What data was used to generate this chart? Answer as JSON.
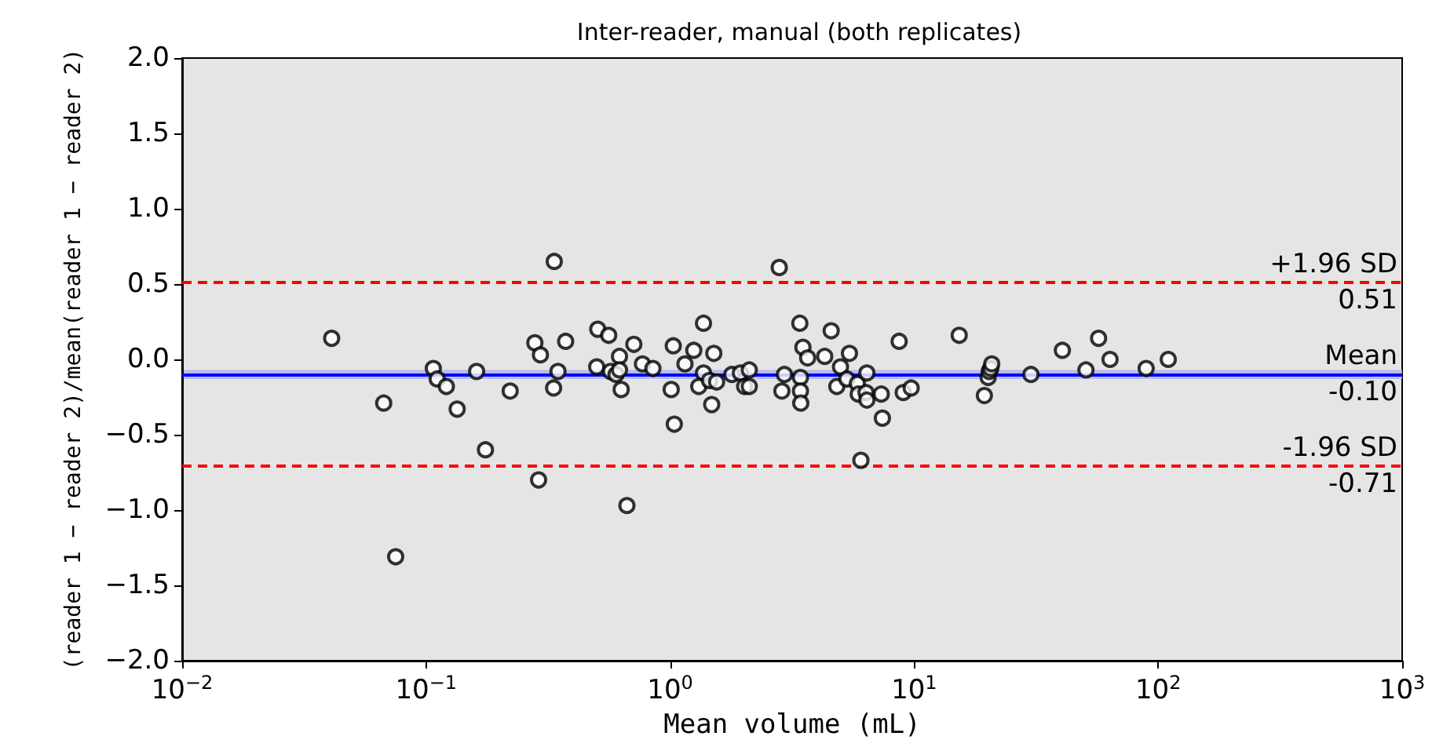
{
  "chart_data": {
    "type": "scatter",
    "title": "Inter-reader, manual (both replicates)",
    "xlabel": "Mean volume (mL)",
    "ylabel": "(reader 1 − reader 2)/mean(reader 1 − reader 2)",
    "log": "x",
    "grid": false,
    "marker": "circle",
    "xlim": [
      0.01,
      1000
    ],
    "xticks": [
      {
        "value": 0.01,
        "label": "10$^{−2}$"
      },
      {
        "value": 0.1,
        "label": "10$^{−1}$"
      },
      {
        "value": 1,
        "label": "10$^{0}$"
      },
      {
        "value": 10,
        "label": "10$^{1}$"
      },
      {
        "value": 100,
        "label": "10$^{2}$"
      },
      {
        "value": 1000,
        "label": "10$^{3}$"
      }
    ],
    "ylim": [
      -2,
      2
    ],
    "yticks": [
      {
        "value": -2,
        "label": "−2.0"
      },
      {
        "value": -1.5,
        "label": "−1.5"
      },
      {
        "value": -1,
        "label": "−1.0"
      },
      {
        "value": -0.5,
        "label": "−0.5"
      },
      {
        "value": 0,
        "label": "0.0"
      },
      {
        "value": 0.5,
        "label": "0.5"
      },
      {
        "value": 1,
        "label": "1.0"
      },
      {
        "value": 1.5,
        "label": "1.5"
      },
      {
        "value": 2,
        "label": "2.0"
      }
    ],
    "series": [
      {
        "color": "#000000",
        "x": [
          0.041,
          0.067,
          0.075,
          0.107,
          0.111,
          0.121,
          0.134,
          0.161,
          0.175,
          0.221,
          0.279,
          0.294,
          0.289,
          0.335,
          0.373,
          0.347,
          0.333,
          0.505,
          0.56,
          0.5,
          0.62,
          0.57,
          0.6,
          0.62,
          0.63,
          0.665,
          0.71,
          0.77,
          0.85,
          1.01,
          1.03,
          1.04,
          1.15,
          1.25,
          1.37,
          1.37,
          1.31,
          1.45,
          1.48,
          1.51,
          1.55,
          1.79,
          1.94,
          2.11,
          2.02,
          2.11,
          2.8,
          2.94,
          2.87,
          3.4,
          3.5,
          3.66,
          3.42,
          3.42,
          3.43,
          4.3,
          4.57,
          4.99,
          5.43,
          4.82,
          5.3,
          5.85,
          6.4,
          5.9,
          6.35,
          6.4,
          6.05,
          7.33,
          7.41,
          8.68,
          9.02,
          9.72,
          15.3,
          19.4,
          20.1,
          20.3,
          20.6,
          20.8,
          30.1,
          40.5,
          50.6,
          57,
          63.5,
          89.3,
          110
        ],
        "values": [
          0.14,
          -0.29,
          -1.31,
          -0.06,
          -0.13,
          -0.18,
          -0.33,
          -0.08,
          -0.6,
          -0.21,
          0.11,
          0.03,
          -0.8,
          0.65,
          0.12,
          -0.08,
          -0.19,
          0.2,
          0.16,
          -0.05,
          0.02,
          -0.08,
          -0.1,
          -0.07,
          -0.2,
          -0.97,
          0.1,
          -0.03,
          -0.06,
          -0.2,
          0.09,
          -0.43,
          -0.03,
          0.06,
          0.24,
          -0.09,
          -0.18,
          -0.14,
          -0.3,
          0.04,
          -0.15,
          -0.1,
          -0.09,
          -0.07,
          -0.18,
          -0.18,
          0.61,
          -0.1,
          -0.21,
          0.24,
          0.08,
          0.01,
          -0.12,
          -0.21,
          -0.29,
          0.02,
          0.19,
          -0.05,
          0.04,
          -0.18,
          -0.13,
          -0.16,
          -0.09,
          -0.23,
          -0.22,
          -0.27,
          -0.67,
          -0.23,
          -0.39,
          0.12,
          -0.22,
          -0.19,
          0.16,
          -0.24,
          -0.12,
          -0.08,
          -0.06,
          -0.03,
          -0.1,
          0.06,
          -0.07,
          0.14,
          0.0,
          -0.06,
          0.0
        ]
      }
    ],
    "ref_lines": [
      {
        "axis": "y",
        "value": 0.51,
        "label": "+1.96 SD\n0.51",
        "color": "#ff0000",
        "line_style": "dashed"
      },
      {
        "axis": "y",
        "value": -0.1,
        "label": "Mean\n-0.10",
        "color": "#0000ff",
        "line_style": "solid"
      },
      {
        "axis": "y",
        "value": -0.71,
        "label": "-1.96 SD\n-0.71",
        "color": "#ff0000",
        "line_style": "dashed"
      }
    ],
    "bands": [
      {
        "axis": "y",
        "from": -0.13,
        "to": -0.07,
        "color": "#aab4ee"
      }
    ]
  }
}
